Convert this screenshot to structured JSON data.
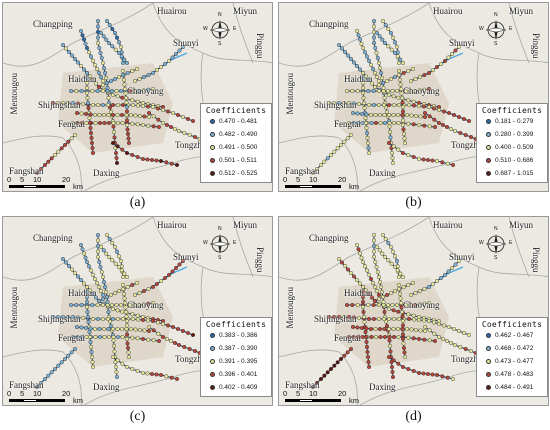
{
  "panels": [
    {
      "label": "(a)",
      "legend_title": "Coefficients",
      "classes": [
        "0.470 - 0.481",
        "0.482 - 0.490",
        "0.491 - 0.500",
        "0.501 - 0.511",
        "0.512 - 0.525"
      ]
    },
    {
      "label": "(b)",
      "legend_title": "Coefficients",
      "classes": [
        "0.181 - 0.279",
        "0.280 - 0.399",
        "0.400 - 0.509",
        "0.510 - 0.686",
        "0.687 - 1.015"
      ]
    },
    {
      "label": "(c)",
      "legend_title": "Coefficients",
      "classes": [
        "0.383 - 0.386",
        "0.387 - 0.390",
        "0.391 - 0.395",
        "0.396 - 0.401",
        "0.402 - 0.409"
      ]
    },
    {
      "label": "(d)",
      "legend_title": "Coefficients",
      "classes": [
        "0.462 - 0.467",
        "0.468 - 0.472",
        "0.473 - 0.477",
        "0.478 - 0.483",
        "0.484 - 0.491"
      ]
    }
  ],
  "places": {
    "huairou": "Huairou",
    "miyun": "Miyun",
    "changping": "Changping",
    "shunyi": "Shunyi",
    "pinggu": "Pinggu",
    "mentougou": "Mentougou",
    "haidian": "Haidian",
    "chaoyang": "Chaoyang",
    "shijingshan": "Shijingshan",
    "fengtai": "Fengtai",
    "tongzhou": "Tongzhou",
    "fangshan": "Fangshan",
    "daxing": "Daxing"
  },
  "scale": {
    "ticks": [
      "0",
      "5",
      "10",
      "20"
    ],
    "unit": "km"
  },
  "compass": {
    "n": "N",
    "s": "S",
    "e": "E",
    "w": "W"
  },
  "class_colors": [
    "#2b6cb0",
    "#7fb3d5",
    "#e8e8a0",
    "#b5473a",
    "#5a1a14"
  ],
  "map_colors": {
    "land": "#ece9e2",
    "urban": "#d9cfc0",
    "boundary": "#a8a8a8",
    "rail": "#1f3a5a"
  }
}
